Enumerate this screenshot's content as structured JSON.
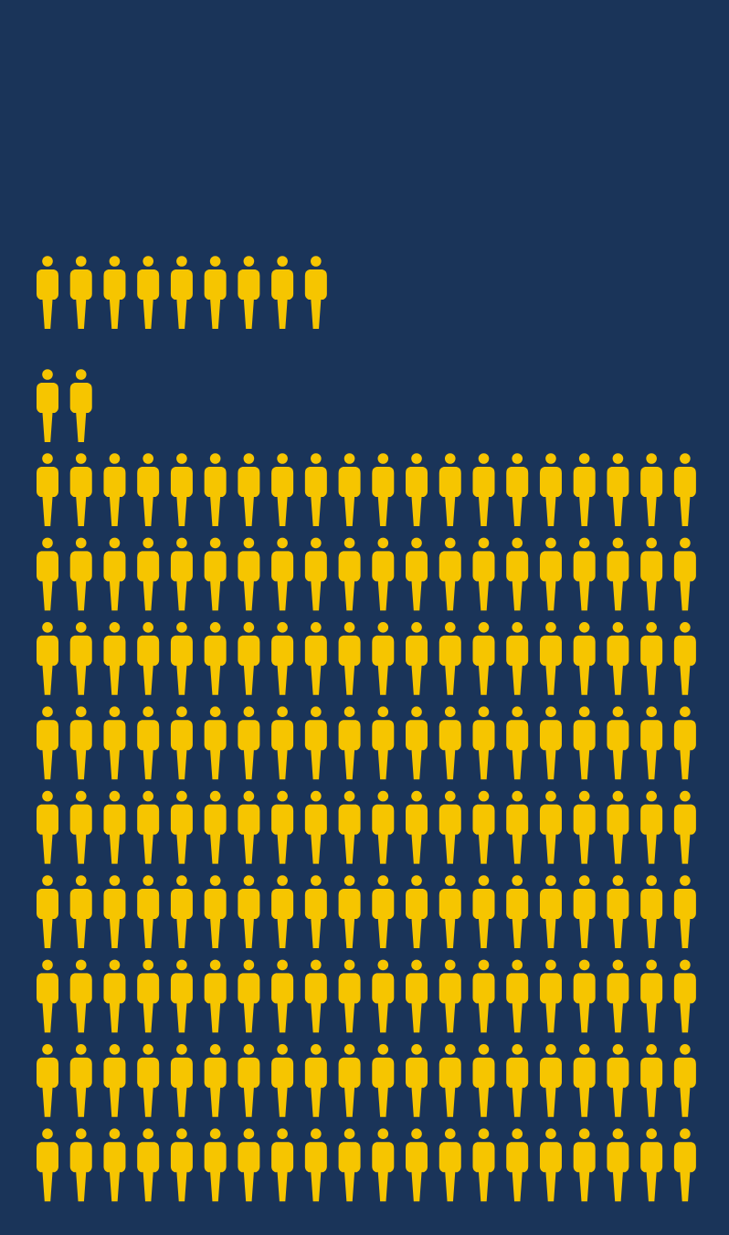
{
  "colors": {
    "background": "#1a3459",
    "icon": "#f6c500"
  },
  "icon_name": "person-icon",
  "chart_data": {
    "type": "pictogram",
    "unit_icon": "person-icon",
    "groups": [
      {
        "count": 9
      },
      {
        "count": 2
      },
      {
        "count": 180
      }
    ]
  }
}
